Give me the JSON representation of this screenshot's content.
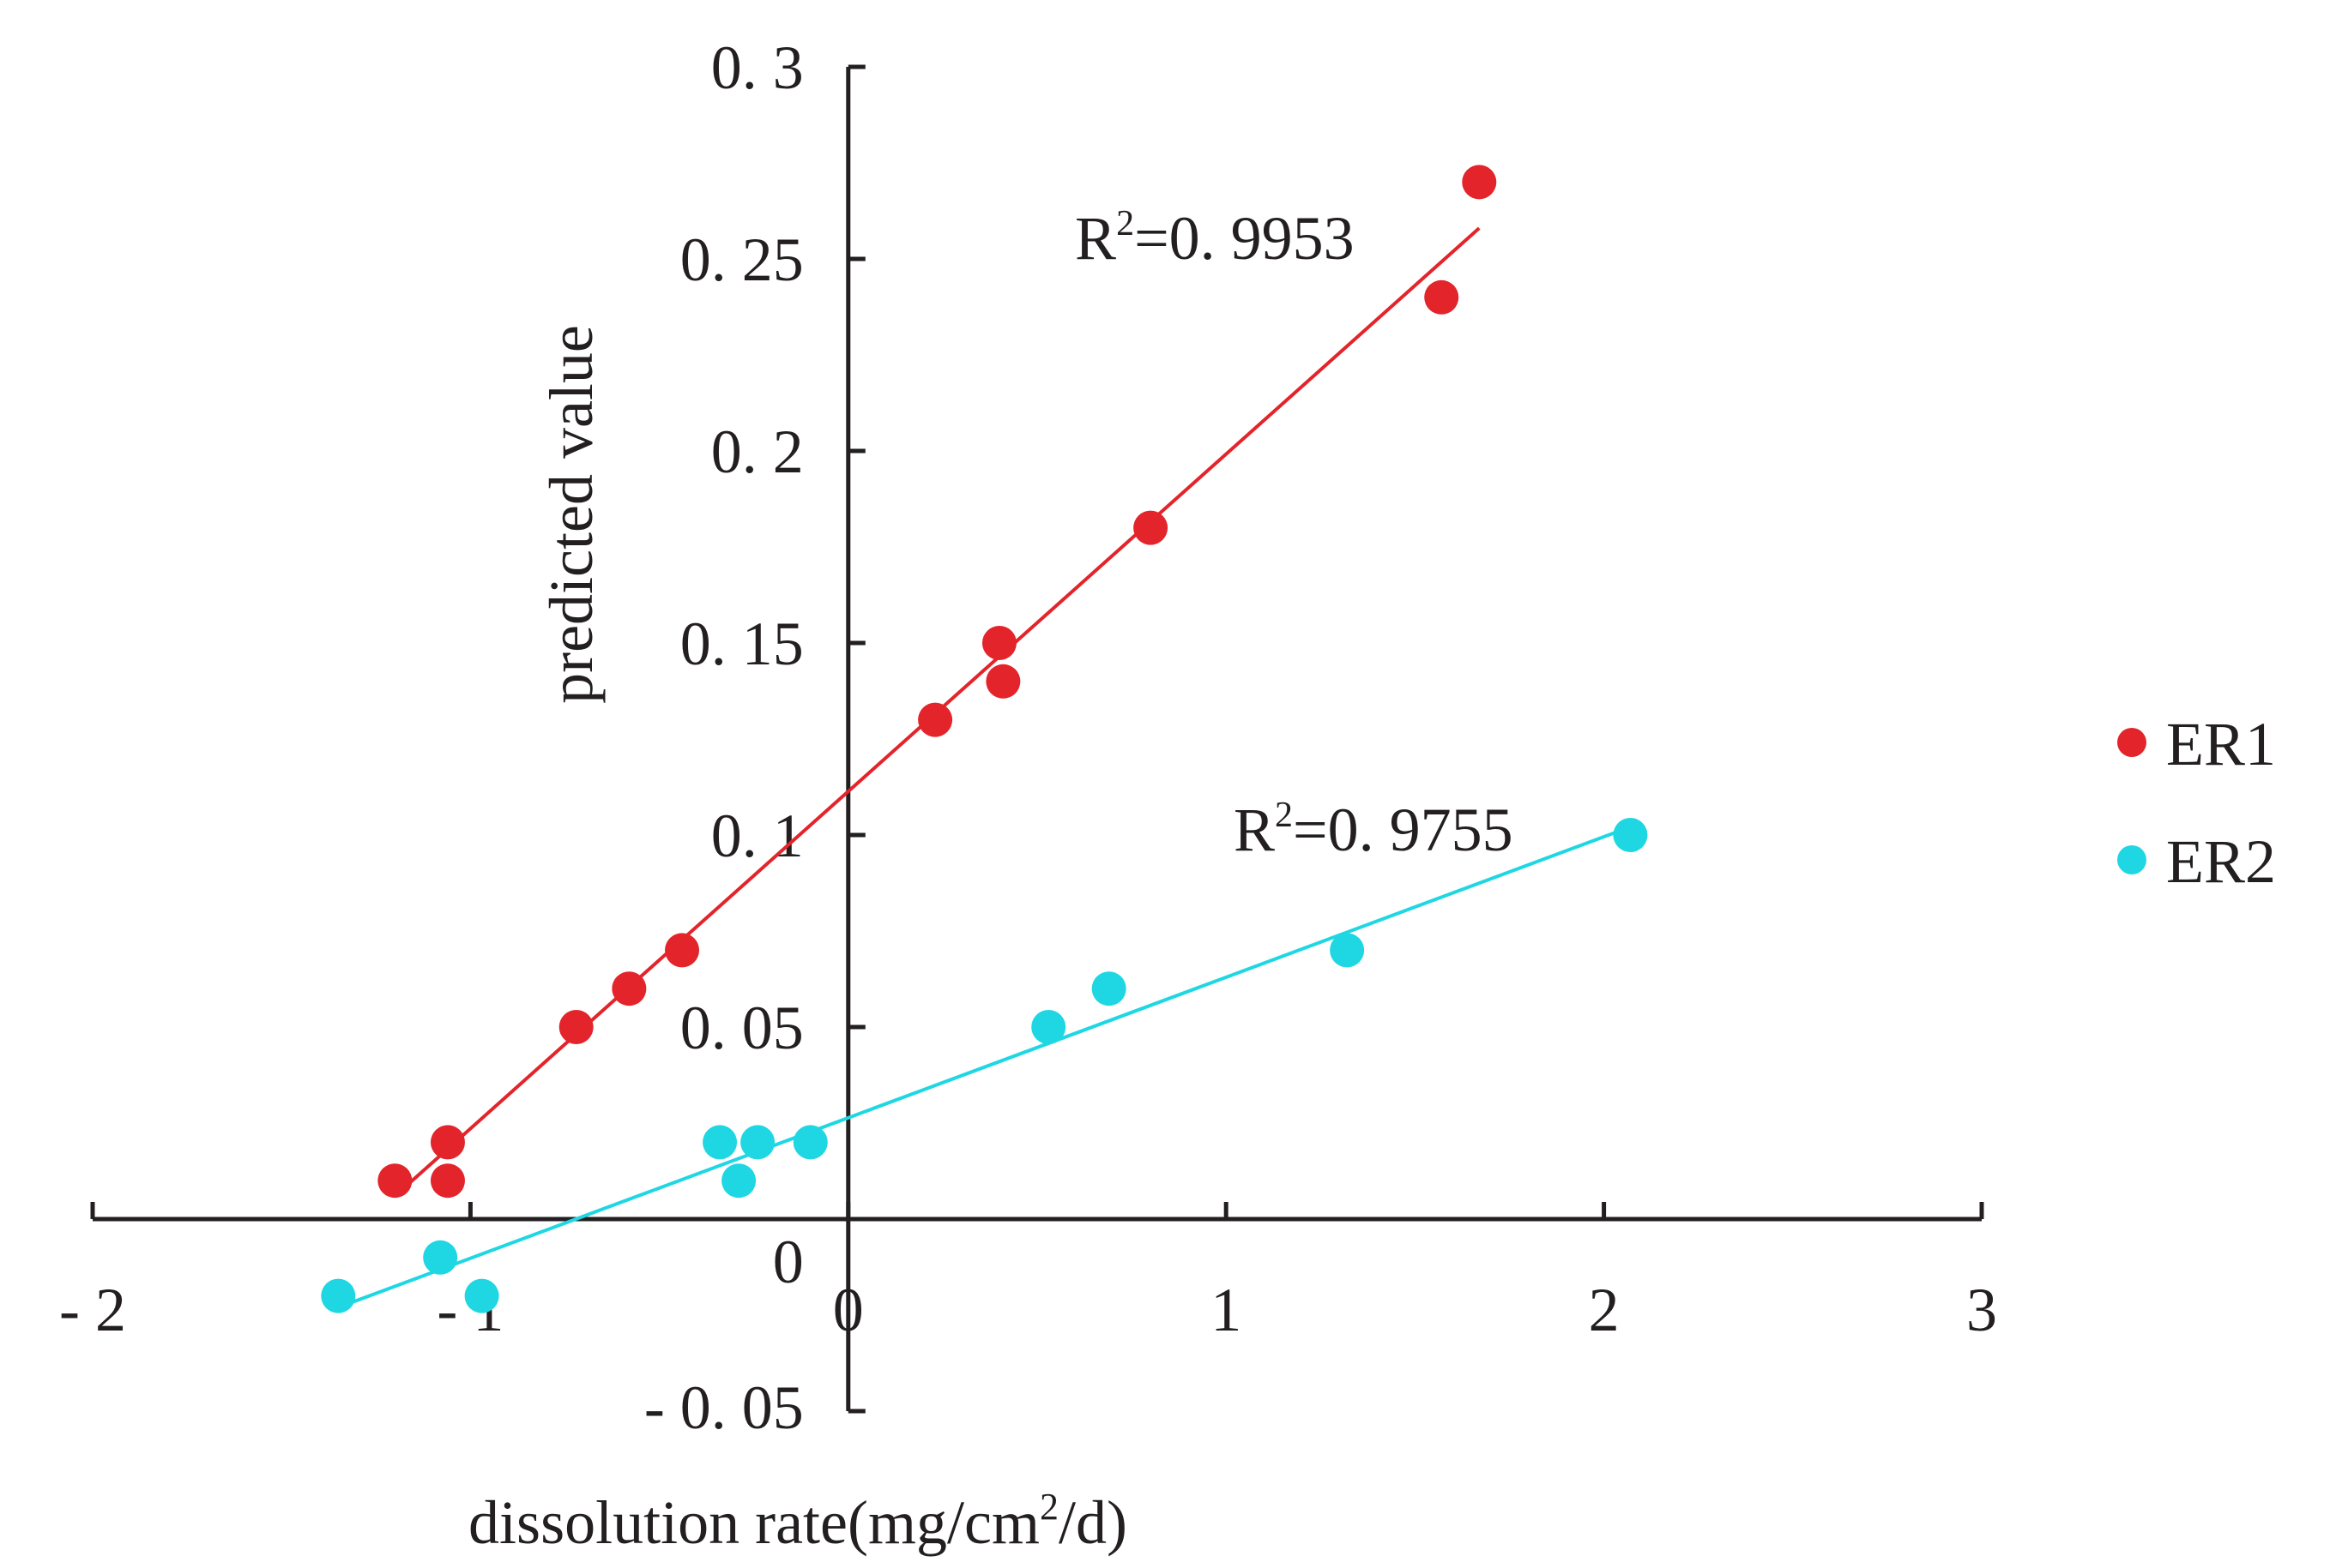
{
  "chart_data": {
    "type": "scatter",
    "title": "",
    "xlabel": "dissolution rate(mg/cm",
    "xlabel_sup": "2",
    "xlabel_end": "/d)",
    "ylabel": "predicted value",
    "xlim": [
      -2,
      3
    ],
    "ylim": [
      -0.05,
      0.3
    ],
    "x_ticks": [
      {
        "value": -2,
        "label": "- 2"
      },
      {
        "value": -1,
        "label": "- 1"
      },
      {
        "value": 0,
        "label": "0"
      },
      {
        "value": 1,
        "label": "1"
      },
      {
        "value": 2,
        "label": "2"
      },
      {
        "value": 3,
        "label": "3"
      }
    ],
    "y_ticks": [
      {
        "value": -0.05,
        "label": "- 0. 05"
      },
      {
        "value": 0,
        "label": "0"
      },
      {
        "value": 0.05,
        "label": "0. 05"
      },
      {
        "value": 0.1,
        "label": "0. 1"
      },
      {
        "value": 0.15,
        "label": "0. 15"
      },
      {
        "value": 0.2,
        "label": "0. 2"
      },
      {
        "value": 0.25,
        "label": "0. 25"
      },
      {
        "value": 0.3,
        "label": "0. 3"
      }
    ],
    "series": [
      {
        "name": "ER1",
        "color": "#e3242b",
        "x": [
          -1.2,
          -1.06,
          -1.06,
          -0.72,
          -0.58,
          -0.44,
          0.23,
          0.4,
          0.41,
          0.8,
          1.57,
          1.67
        ],
        "y": [
          0.01,
          0.02,
          0.01,
          0.05,
          0.06,
          0.07,
          0.13,
          0.15,
          0.14,
          0.18,
          0.24,
          0.27
        ],
        "trendline": {
          "x": [
            -1.2,
            1.67
          ],
          "y": [
            0.006,
            0.258
          ]
        },
        "r2_label": "R",
        "r2_sup": "2",
        "r2_value": "=0. 9953",
        "r2_pos": {
          "x": 0.6,
          "y": 0.25
        }
      },
      {
        "name": "ER2",
        "color": "#1fd7e3",
        "x": [
          -1.35,
          -1.08,
          -0.97,
          -0.34,
          -0.29,
          -0.24,
          -0.1,
          0.53,
          0.69,
          1.32,
          2.07
        ],
        "y": [
          -0.02,
          -0.01,
          -0.02,
          0.02,
          0.01,
          0.02,
          0.02,
          0.05,
          0.06,
          0.07,
          0.1
        ],
        "trendline": {
          "x": [
            -1.35,
            2.04
          ],
          "y": [
            -0.023,
            0.101
          ]
        },
        "r2_label": "R",
        "r2_sup": "2",
        "r2_value": "=0. 9755",
        "r2_pos": {
          "x": 1.02,
          "y": 0.096
        }
      }
    ],
    "legend": {
      "position": "right",
      "entries": [
        "ER1",
        "ER2"
      ]
    },
    "grid": false
  }
}
